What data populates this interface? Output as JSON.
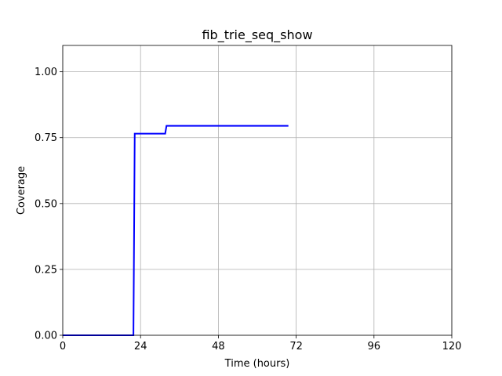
{
  "chart_data": {
    "type": "line",
    "title": "fib_trie_seq_show",
    "xlabel": "Time (hours)",
    "ylabel": "Coverage",
    "xlim": [
      0,
      120
    ],
    "ylim": [
      0,
      1.1
    ],
    "xticks": [
      0,
      24,
      48,
      72,
      96,
      120
    ],
    "yticks": [
      0.0,
      0.25,
      0.5,
      0.75,
      1.0
    ],
    "xtick_labels": [
      "0",
      "24",
      "48",
      "72",
      "96",
      "120"
    ],
    "ytick_labels": [
      "0.00",
      "0.25",
      "0.50",
      "0.75",
      "1.00"
    ],
    "grid": true,
    "series": [
      {
        "color": "#0000ff",
        "x": [
          0,
          21.8,
          22.2,
          31.6,
          32.0,
          69.6
        ],
        "y": [
          0.0,
          0.0,
          0.765,
          0.765,
          0.795,
          0.795
        ]
      }
    ]
  }
}
